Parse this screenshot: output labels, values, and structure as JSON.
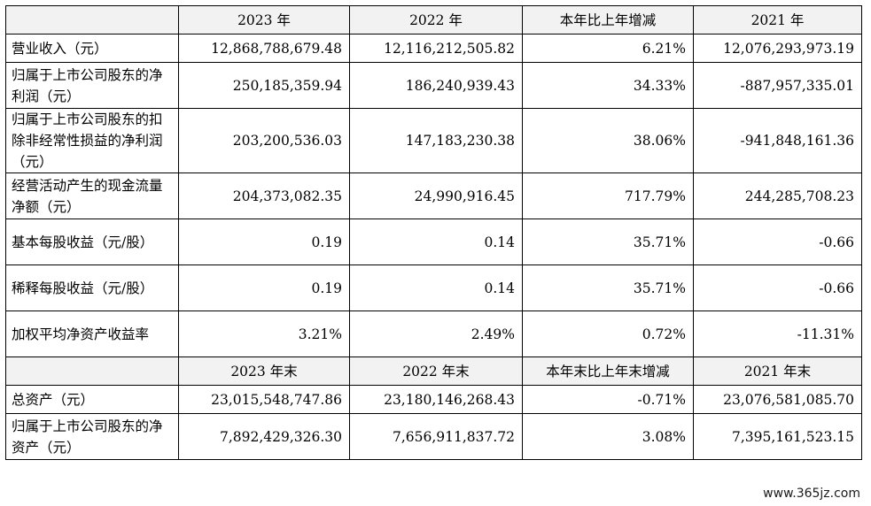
{
  "header1": [
    "",
    "2023 年",
    "2022 年",
    "本年比上年增减",
    "2021 年"
  ],
  "rows1": [
    {
      "label": "营业收入（元）",
      "v2023": "12,868,788,679.48",
      "v2022": "12,116,212,505.82",
      "chg": "6.21%",
      "v2021": "12,076,293,973.19"
    },
    {
      "label": "归属于上市公司股东的净利润（元）",
      "v2023": "250,185,359.94",
      "v2022": "186,240,939.43",
      "chg": "34.33%",
      "v2021": "-887,957,335.01"
    },
    {
      "label": "归属于上市公司股东的扣除非经常性损益的净利润（元）",
      "v2023": "203,200,536.03",
      "v2022": "147,183,230.38",
      "chg": "38.06%",
      "v2021": "-941,848,161.36"
    },
    {
      "label": "经营活动产生的现金流量净额（元）",
      "v2023": "204,373,082.35",
      "v2022": "24,990,916.45",
      "chg": "717.79%",
      "v2021": "244,285,708.23"
    },
    {
      "label": "基本每股收益（元/股）",
      "v2023": "0.19",
      "v2022": "0.14",
      "chg": "35.71%",
      "v2021": "-0.66"
    },
    {
      "label": "稀释每股收益（元/股）",
      "v2023": "0.19",
      "v2022": "0.14",
      "chg": "35.71%",
      "v2021": "-0.66"
    },
    {
      "label": "加权平均净资产收益率",
      "v2023": "3.21%",
      "v2022": "2.49%",
      "chg": "0.72%",
      "v2021": "-11.31%"
    }
  ],
  "header2": [
    "",
    "2023 年末",
    "2022 年末",
    "本年末比上年末增减",
    "2021 年末"
  ],
  "rows2": [
    {
      "label": "总资产（元）",
      "v2023": "23,015,548,747.86",
      "v2022": "23,180,146,268.43",
      "chg": "-0.71%",
      "v2021": "23,076,581,085.70"
    },
    {
      "label": "归属于上市公司股东的净资产（元）",
      "v2023": "7,892,429,326.30",
      "v2022": "7,656,911,837.72",
      "chg": "3.08%",
      "v2021": "7,395,161,523.15"
    }
  ],
  "watermark": "www.365jz.com"
}
